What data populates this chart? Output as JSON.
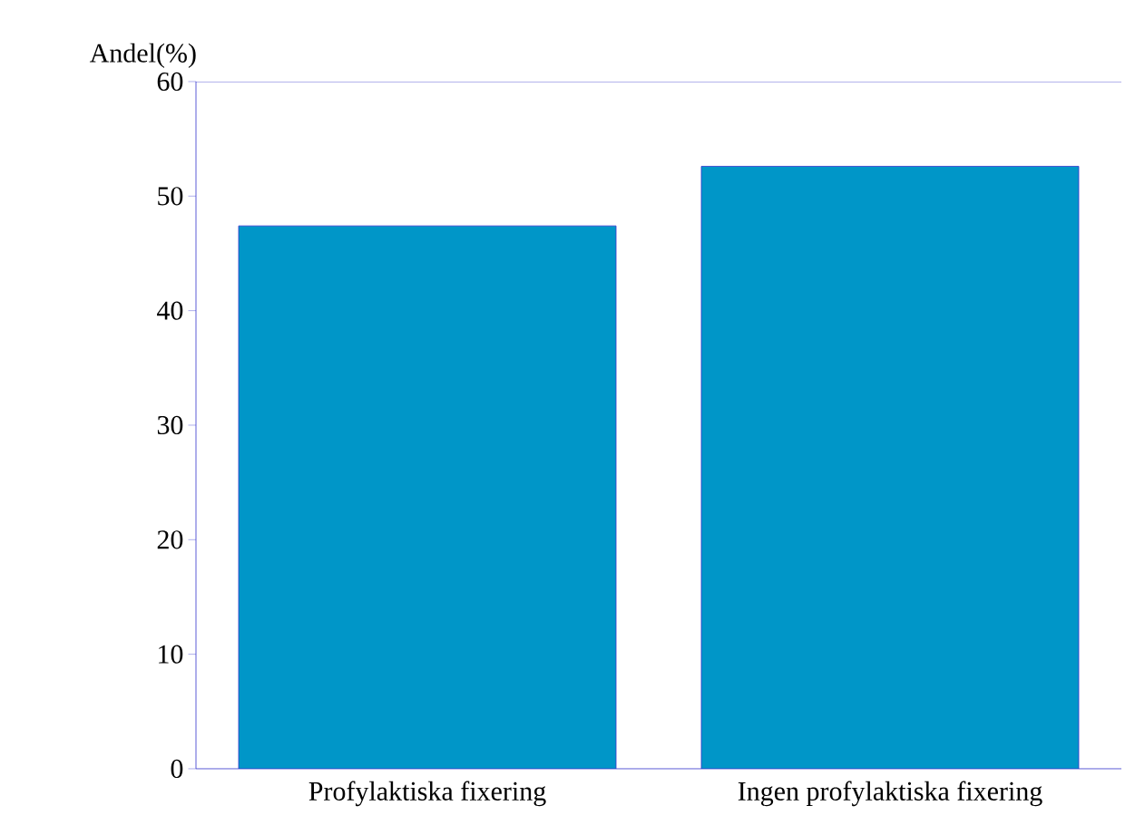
{
  "chart_data": {
    "type": "bar",
    "ylabel": "Andel(%)",
    "categories": [
      "Profylaktiska fixering",
      "Ingen profylaktiska fixering"
    ],
    "values": [
      47.4,
      52.6
    ],
    "color": "#0096c8",
    "ylim": [
      0,
      60
    ],
    "yticks": [
      0,
      10,
      20,
      30,
      40,
      50,
      60
    ],
    "grid": false
  }
}
